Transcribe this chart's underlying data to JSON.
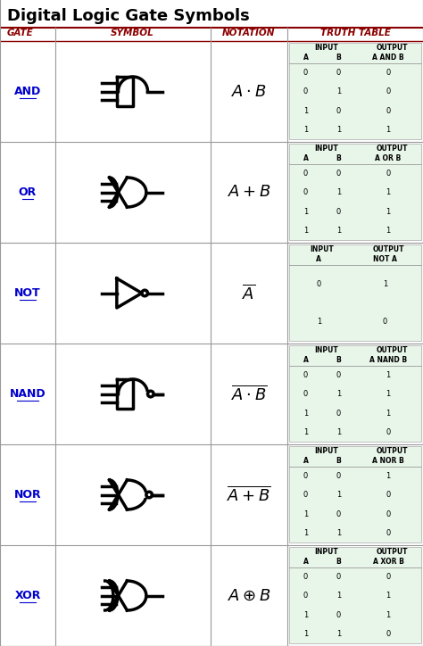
{
  "title": "Digital Logic Gate Symbols",
  "header_color": "#8B0000",
  "title_color": "#000000",
  "link_color": "#0000CC",
  "bg_color": "#FFFFFF",
  "truth_table_bg": "#E8F5E9",
  "gates": [
    {
      "name": "AND",
      "type": "and",
      "tt_headers": [
        "A",
        "B",
        "A AND B"
      ],
      "tt_rows": [
        [
          0,
          0,
          0
        ],
        [
          0,
          1,
          0
        ],
        [
          1,
          0,
          0
        ],
        [
          1,
          1,
          1
        ]
      ]
    },
    {
      "name": "OR",
      "type": "or",
      "tt_headers": [
        "A",
        "B",
        "A OR B"
      ],
      "tt_rows": [
        [
          0,
          0,
          0
        ],
        [
          0,
          1,
          1
        ],
        [
          1,
          0,
          1
        ],
        [
          1,
          1,
          1
        ]
      ]
    },
    {
      "name": "NOT",
      "type": "not",
      "tt_headers": [
        "A",
        "NOT A"
      ],
      "tt_rows": [
        [
          0,
          1
        ],
        [
          1,
          0
        ]
      ]
    },
    {
      "name": "NAND",
      "type": "nand",
      "tt_headers": [
        "A",
        "B",
        "A NAND B"
      ],
      "tt_rows": [
        [
          0,
          0,
          1
        ],
        [
          0,
          1,
          1
        ],
        [
          1,
          0,
          1
        ],
        [
          1,
          1,
          0
        ]
      ]
    },
    {
      "name": "NOR",
      "type": "nor",
      "tt_headers": [
        "A",
        "B",
        "A NOR B"
      ],
      "tt_rows": [
        [
          0,
          0,
          1
        ],
        [
          0,
          1,
          0
        ],
        [
          1,
          0,
          0
        ],
        [
          1,
          1,
          0
        ]
      ]
    },
    {
      "name": "XOR",
      "type": "xor",
      "tt_headers": [
        "A",
        "B",
        "A XOR B"
      ],
      "tt_rows": [
        [
          0,
          0,
          0
        ],
        [
          0,
          1,
          1
        ],
        [
          1,
          0,
          1
        ],
        [
          1,
          1,
          0
        ]
      ]
    }
  ]
}
